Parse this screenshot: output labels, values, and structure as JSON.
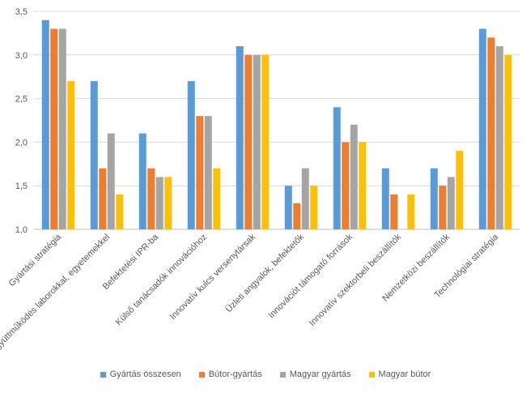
{
  "chart_data": {
    "type": "bar",
    "categories": [
      "Gyártási stratégia",
      "Együttműködés laborokkal, egyetemekkel",
      "Befektetési IPR-ba",
      "Külső tanácsadók innovációhoz",
      "Innovatív kulcs versenytársak",
      "Üzleti angyalok, befektetők",
      "Innovációt támogató források",
      "Innovatív szektorbeli beszállítók",
      "Nemzetközi beszállítók",
      "Technológiai stratégia"
    ],
    "series": [
      {
        "name": "Gyártás összesen",
        "color": "#5B9BD5",
        "values": [
          3.4,
          2.7,
          2.1,
          2.7,
          3.1,
          1.5,
          2.4,
          1.7,
          1.7,
          3.3
        ]
      },
      {
        "name": "Bútor-gyártás",
        "color": "#ED7D31",
        "values": [
          3.3,
          1.7,
          1.7,
          2.3,
          3.0,
          1.3,
          2.0,
          1.4,
          1.5,
          3.2
        ]
      },
      {
        "name": "Magyar gyártás",
        "color": "#A5A5A5",
        "values": [
          3.3,
          2.1,
          1.6,
          2.3,
          3.0,
          1.7,
          2.2,
          1.0,
          1.6,
          3.1
        ]
      },
      {
        "name": "Magyar bútor",
        "color": "#FFC000",
        "values": [
          2.7,
          1.4,
          1.6,
          1.7,
          3.0,
          1.5,
          2.0,
          1.4,
          1.9,
          3.0
        ]
      }
    ],
    "ylim": [
      1.0,
      3.5
    ],
    "yticks": [
      "1,0",
      "1,5",
      "2,0",
      "2,5",
      "3,0",
      "3,5"
    ],
    "grid": true,
    "legend": "bottom"
  }
}
